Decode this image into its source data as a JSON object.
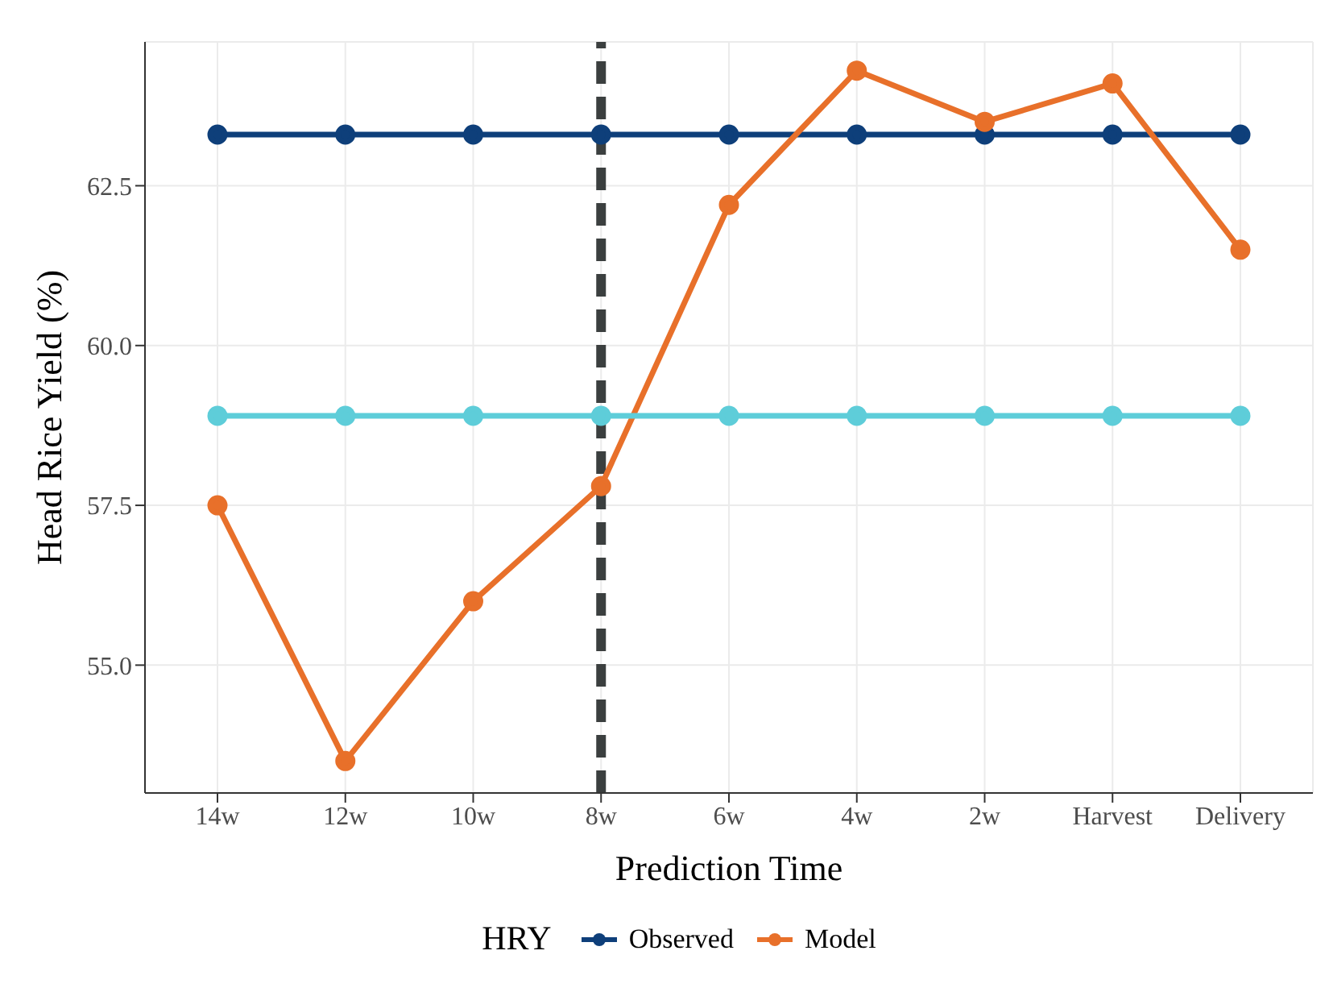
{
  "chart_data": {
    "type": "line",
    "xlabel": "Prediction Time",
    "ylabel": "Head Rice Yield (%)",
    "legend_title": "HRY",
    "categories": [
      "14w",
      "12w",
      "10w",
      "8w",
      "6w",
      "4w",
      "2w",
      "Harvest",
      "Delivery"
    ],
    "series": [
      {
        "name": "Observed",
        "color": "#0e3f7a",
        "values": [
          63.3,
          63.3,
          63.3,
          63.3,
          63.3,
          63.3,
          63.3,
          63.3,
          63.3
        ]
      },
      {
        "name": "Model",
        "color": "#e8702a",
        "values": [
          57.5,
          53.5,
          56.0,
          57.8,
          62.2,
          64.3,
          63.5,
          64.1,
          61.5
        ]
      },
      {
        "color": "#5ecdd9",
        "values": [
          58.9,
          58.9,
          58.9,
          58.9,
          58.9,
          58.9,
          58.9,
          58.9,
          58.9
        ]
      }
    ],
    "ylim": [
      53.0,
      64.75
    ],
    "yticks": [
      {
        "value": 55,
        "label": "55.0"
      },
      {
        "value": 57.5,
        "label": "57.5"
      },
      {
        "value": 60,
        "label": "60.0"
      },
      {
        "value": 62.5,
        "label": "62.5"
      }
    ],
    "ref_lines": [
      {
        "axis": "x",
        "value": "8w",
        "color": "#3b3f3f",
        "line_style": "dashed"
      }
    ],
    "grid": true,
    "legend": "bottom",
    "marker": "circle",
    "line_style": "solid"
  }
}
